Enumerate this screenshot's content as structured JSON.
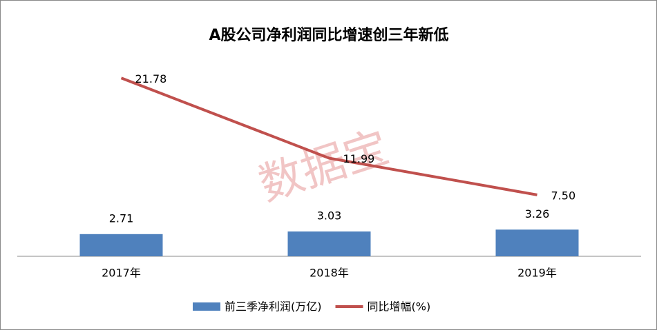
{
  "chart_data": {
    "type": "bar-line",
    "title": "A股公司净利润同比增速创三年新低",
    "watermark": "数据宝",
    "categories": [
      "2017年",
      "2018年",
      "2019年"
    ],
    "series": [
      {
        "name": "前三季净利润(万亿)",
        "type": "bar",
        "color": "#4f81bd",
        "values": [
          2.71,
          3.03,
          3.26
        ]
      },
      {
        "name": "同比增幅(%)",
        "type": "line",
        "axis": "y2",
        "color": "#c0504d",
        "values": [
          21.78,
          11.99,
          7.5
        ],
        "value_labels": [
          "21.78",
          "11.99",
          "7.50"
        ]
      }
    ],
    "ylim": [
      0,
      25
    ],
    "y2lim": [
      0,
      25
    ],
    "legend": "bottom"
  }
}
